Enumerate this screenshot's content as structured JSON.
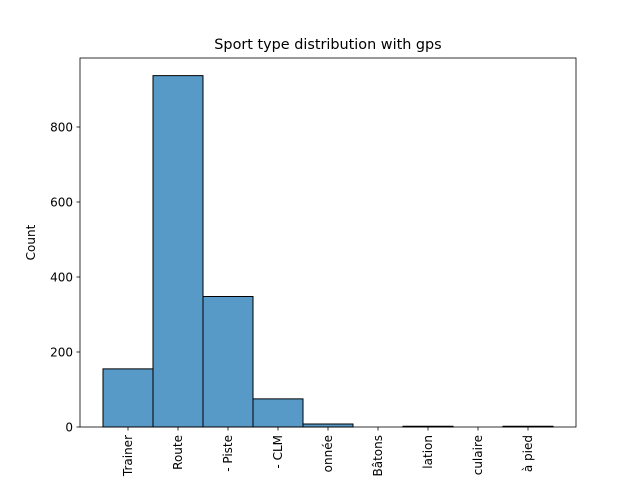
{
  "chart_data": {
    "type": "bar",
    "title": "Sport type distribution with gps",
    "xlabel": "",
    "ylabel": "Count",
    "categories": [
      "Trainer",
      "Route",
      "- Piste",
      "- CLM",
      "onnée",
      "Bâtons",
      "lation",
      "culaire",
      "à pied"
    ],
    "values": [
      155,
      937,
      348,
      75,
      8,
      0,
      2,
      0,
      2
    ],
    "ylim": [
      0,
      984
    ],
    "yticks": [
      0,
      200,
      400,
      600,
      800
    ],
    "bar_color": "#5799c7",
    "edge_color": "#000000",
    "grid": false,
    "legend": "none"
  }
}
